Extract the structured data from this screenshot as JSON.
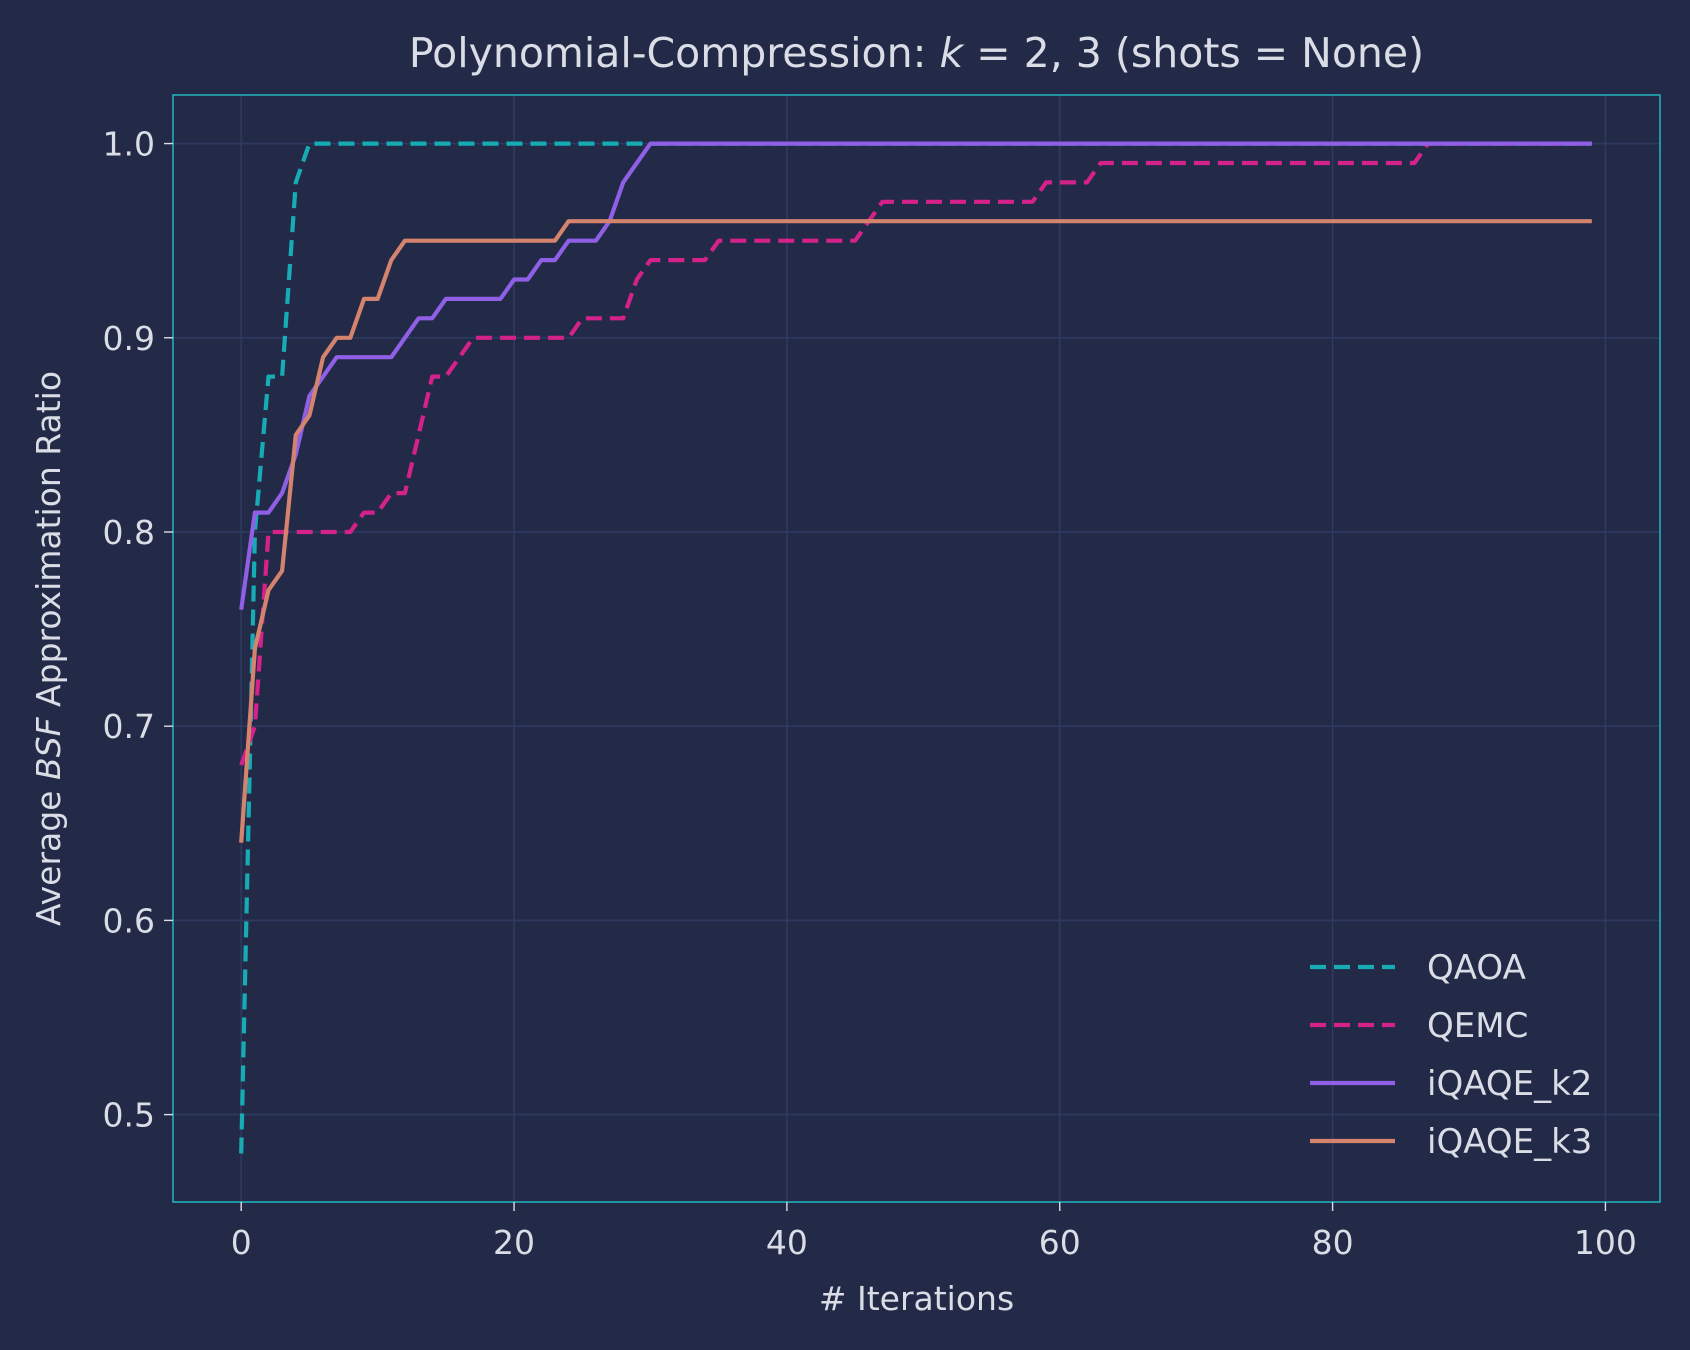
{
  "chart_data": {
    "type": "line",
    "title": "Polynomial-Compression: k = 2, 3 (shots = None)",
    "xlabel": "# Iterations",
    "ylabel": "Average BSF Approximation Ratio",
    "xlim": [
      -5,
      104
    ],
    "ylim": [
      0.455,
      1.025
    ],
    "xticks": [
      "0",
      "20",
      "40",
      "60",
      "80",
      "100"
    ],
    "yticks": [
      "0.5",
      "0.6",
      "0.7",
      "0.8",
      "0.9",
      "1.0"
    ],
    "grid": true,
    "legend_position": "bottom-right",
    "colors": {
      "background": "#222a47",
      "grid": "#2e3a60",
      "frame": "#1fb8c2",
      "text": "#dadde6"
    },
    "series": [
      {
        "name": "QAOA",
        "color": "#17abb5",
        "dash": "dashed",
        "points": [
          [
            0,
            0.48
          ],
          [
            1,
            0.8
          ],
          [
            2,
            0.88
          ],
          [
            3,
            0.88
          ],
          [
            4,
            0.98
          ],
          [
            5,
            1.0
          ],
          [
            99,
            1.0
          ]
        ]
      },
      {
        "name": "QEMC",
        "color": "#d5228a",
        "dash": "dashed",
        "points": [
          [
            0,
            0.68
          ],
          [
            1,
            0.7
          ],
          [
            2,
            0.8
          ],
          [
            8,
            0.8
          ],
          [
            9,
            0.81
          ],
          [
            10,
            0.81
          ],
          [
            11,
            0.82
          ],
          [
            12,
            0.82
          ],
          [
            13,
            0.85
          ],
          [
            14,
            0.88
          ],
          [
            15,
            0.88
          ],
          [
            16,
            0.89
          ],
          [
            17,
            0.9
          ],
          [
            24,
            0.9
          ],
          [
            25,
            0.91
          ],
          [
            28,
            0.91
          ],
          [
            29,
            0.93
          ],
          [
            30,
            0.94
          ],
          [
            34,
            0.94
          ],
          [
            35,
            0.95
          ],
          [
            45,
            0.95
          ],
          [
            46,
            0.96
          ],
          [
            47,
            0.97
          ],
          [
            58,
            0.97
          ],
          [
            59,
            0.98
          ],
          [
            62,
            0.98
          ],
          [
            63,
            0.99
          ],
          [
            86,
            0.99
          ],
          [
            87,
            1.0
          ],
          [
            99,
            1.0
          ]
        ]
      },
      {
        "name": "iQAQE_k2",
        "color": "#8f5fe6",
        "dash": "solid",
        "points": [
          [
            0,
            0.76
          ],
          [
            1,
            0.81
          ],
          [
            2,
            0.81
          ],
          [
            3,
            0.82
          ],
          [
            4,
            0.84
          ],
          [
            5,
            0.87
          ],
          [
            6,
            0.88
          ],
          [
            7,
            0.89
          ],
          [
            11,
            0.89
          ],
          [
            12,
            0.9
          ],
          [
            13,
            0.91
          ],
          [
            14,
            0.91
          ],
          [
            15,
            0.92
          ],
          [
            19,
            0.92
          ],
          [
            20,
            0.93
          ],
          [
            21,
            0.93
          ],
          [
            22,
            0.94
          ],
          [
            23,
            0.94
          ],
          [
            24,
            0.95
          ],
          [
            26,
            0.95
          ],
          [
            27,
            0.96
          ],
          [
            28,
            0.98
          ],
          [
            29,
            0.99
          ],
          [
            30,
            1.0
          ],
          [
            99,
            1.0
          ]
        ]
      },
      {
        "name": "iQAQE_k3",
        "color": "#d4846e",
        "dash": "solid",
        "points": [
          [
            0,
            0.64
          ],
          [
            1,
            0.74
          ],
          [
            2,
            0.77
          ],
          [
            3,
            0.78
          ],
          [
            4,
            0.85
          ],
          [
            5,
            0.86
          ],
          [
            6,
            0.89
          ],
          [
            7,
            0.9
          ],
          [
            8,
            0.9
          ],
          [
            9,
            0.92
          ],
          [
            10,
            0.92
          ],
          [
            11,
            0.94
          ],
          [
            12,
            0.95
          ],
          [
            23,
            0.95
          ],
          [
            24,
            0.96
          ],
          [
            99,
            0.96
          ]
        ]
      }
    ]
  }
}
